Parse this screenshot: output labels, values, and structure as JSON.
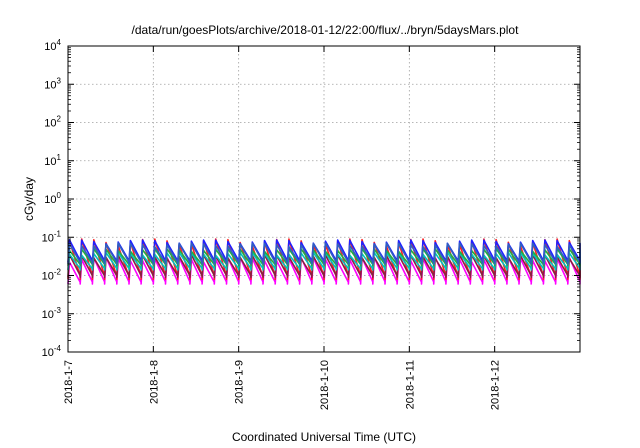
{
  "chart_data": {
    "type": "line",
    "title": "/data/run/goesPlots/archive/2018-01-12/22:00/flux/../bryn/5daysMars.plot",
    "xlabel": "Coordinated Universal Time (UTC)",
    "ylabel": "cGy/day",
    "y_scale": "log",
    "ylim": [
      0.0001,
      10000
    ],
    "y_ticks": [
      {
        "value": 0.0001,
        "base": "10",
        "exp": "-4"
      },
      {
        "value": 0.001,
        "base": "10",
        "exp": "-3"
      },
      {
        "value": 0.01,
        "base": "10",
        "exp": "-2"
      },
      {
        "value": 0.1,
        "base": "10",
        "exp": "-1"
      },
      {
        "value": 1,
        "base": "10",
        "exp": "0"
      },
      {
        "value": 10,
        "base": "10",
        "exp": "1"
      },
      {
        "value": 100,
        "base": "10",
        "exp": "2"
      },
      {
        "value": 1000,
        "base": "10",
        "exp": "3"
      },
      {
        "value": 10000,
        "base": "10",
        "exp": "4"
      }
    ],
    "xlim": [
      "2018-01-07",
      "2018-01-13"
    ],
    "x_ticks": [
      "2018-1-7",
      "2018-1-8",
      "2018-1-9",
      "2018-1-10",
      "2018-1-11",
      "2018-1-12"
    ],
    "x_tick_dates": [
      "2018-01-07",
      "2018-01-08",
      "2018-01-09",
      "2018-01-10",
      "2018-01-11",
      "2018-01-12"
    ],
    "grid": true,
    "legend": "none",
    "pattern": "sawtooth, approx. 7 cycles per day",
    "series": [
      {
        "color": "#ff00ff",
        "low": 0.006,
        "high": 0.03
      },
      {
        "color": "#ff2020",
        "low": 0.008,
        "high": 0.09
      },
      {
        "color": "#8a2040",
        "low": 0.009,
        "high": 0.035
      },
      {
        "color": "#00c0c0",
        "low": 0.014,
        "high": 0.04
      },
      {
        "color": "#20b040",
        "low": 0.018,
        "high": 0.05
      },
      {
        "color": "#2020ff",
        "low": 0.022,
        "high": 0.085
      },
      {
        "color": "#3060c0",
        "low": 0.02,
        "high": 0.07
      }
    ]
  }
}
